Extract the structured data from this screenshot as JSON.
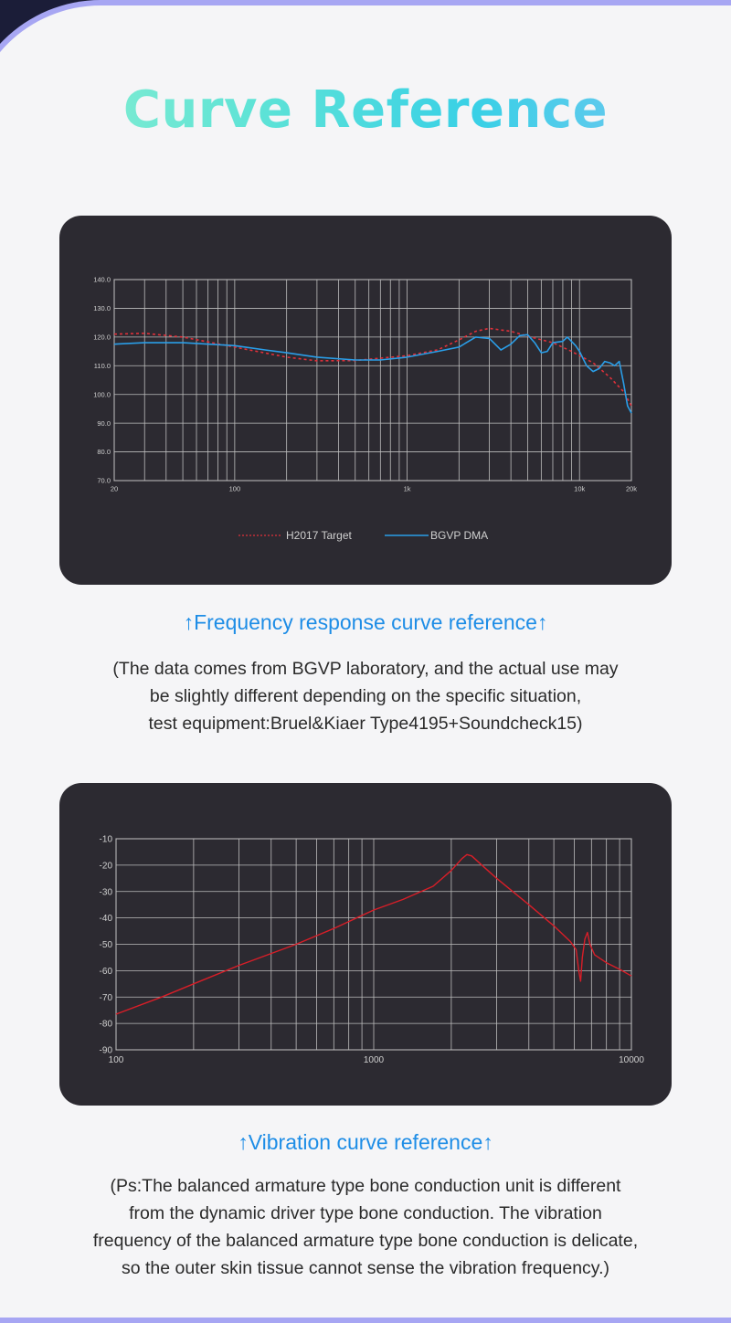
{
  "title": "Curve Reference",
  "frequency_section": {
    "caption": "↑Frequency response curve reference↑",
    "note_lines": [
      "(The data comes from BGVP laboratory, and the actual use may",
      "be slightly different depending on the specific situation,",
      "test equipment:Bruel&Kiaer Type4195+Soundcheck15)"
    ]
  },
  "vibration_section": {
    "caption": "↑Vibration curve reference↑",
    "note_lines": [
      "(Ps:The balanced armature type bone conduction unit is different",
      "from the dynamic driver type bone conduction. The vibration",
      "frequency of the balanced armature type bone conduction is delicate,",
      "so the outer skin tissue cannot sense the vibration frequency.)"
    ]
  },
  "colors": {
    "panel_bg": "#2c2a31",
    "target_line": "#e0303a",
    "measured_line": "#2a9ee8",
    "vibration_line": "#d81e28",
    "caption": "#1e8de6"
  },
  "chart_data": [
    {
      "type": "line",
      "x_scale": "log",
      "xlim": [
        20,
        20000
      ],
      "ylim": [
        70,
        140
      ],
      "x_ticks": [
        20,
        100,
        1000,
        10000,
        20000
      ],
      "x_tick_labels": [
        "20",
        "100",
        "1k",
        "10k",
        "20k"
      ],
      "y_ticks": [
        70,
        80,
        90,
        100,
        110,
        120,
        130,
        140
      ],
      "y_tick_labels": [
        "70.0",
        "80.0",
        "90.0",
        "100.0",
        "110.0",
        "120.0",
        "130.0",
        "140.0"
      ],
      "grid": true,
      "legend_position": "bottom-center",
      "series": [
        {
          "name": "H2017 Target",
          "style": "dashed",
          "color": "#e0303a",
          "points": [
            [
              20,
              121
            ],
            [
              30,
              121.3
            ],
            [
              50,
              120
            ],
            [
              100,
              116.5
            ],
            [
              200,
              113
            ],
            [
              300,
              111.7
            ],
            [
              500,
              111.8
            ],
            [
              1000,
              113.5
            ],
            [
              1500,
              115.5
            ],
            [
              2000,
              119
            ],
            [
              2500,
              122
            ],
            [
              3000,
              123
            ],
            [
              4000,
              122
            ],
            [
              5000,
              120.3
            ],
            [
              7000,
              118
            ],
            [
              9000,
              115
            ],
            [
              12000,
              111
            ],
            [
              15000,
              106
            ],
            [
              18000,
              101
            ],
            [
              20000,
              96
            ]
          ]
        },
        {
          "name": "BGVP DMA",
          "style": "solid",
          "color": "#2a9ee8",
          "points": [
            [
              20,
              117.5
            ],
            [
              30,
              118
            ],
            [
              50,
              118
            ],
            [
              100,
              117
            ],
            [
              150,
              115.5
            ],
            [
              200,
              114.5
            ],
            [
              300,
              113
            ],
            [
              500,
              112
            ],
            [
              700,
              112
            ],
            [
              1000,
              113
            ],
            [
              1500,
              115
            ],
            [
              2000,
              116.5
            ],
            [
              2500,
              120
            ],
            [
              3000,
              119.5
            ],
            [
              3500,
              115.5
            ],
            [
              4000,
              117.5
            ],
            [
              4500,
              120.5
            ],
            [
              5000,
              120.8
            ],
            [
              5500,
              118
            ],
            [
              6000,
              114.5
            ],
            [
              6500,
              115
            ],
            [
              7000,
              118
            ],
            [
              8000,
              118.5
            ],
            [
              8500,
              120
            ],
            [
              9500,
              117
            ],
            [
              10000,
              115
            ],
            [
              11000,
              110
            ],
            [
              12000,
              108
            ],
            [
              13000,
              109
            ],
            [
              14000,
              111.5
            ],
            [
              15000,
              111
            ],
            [
              16000,
              110
            ],
            [
              17000,
              111.5
            ],
            [
              18000,
              104
            ],
            [
              19000,
              96
            ],
            [
              20000,
              93.5
            ]
          ]
        }
      ]
    },
    {
      "type": "line",
      "x_scale": "log",
      "xlim": [
        100,
        10000
      ],
      "ylim": [
        -90,
        -10
      ],
      "x_ticks": [
        100,
        1000,
        10000
      ],
      "x_tick_labels": [
        "100",
        "1000",
        "10000"
      ],
      "y_ticks": [
        -90,
        -80,
        -70,
        -60,
        -50,
        -40,
        -30,
        -20,
        -10
      ],
      "y_tick_labels": [
        "-90",
        "-80",
        "-70",
        "-60",
        "-50",
        "-40",
        "-30",
        "-20",
        "-10"
      ],
      "grid": true,
      "series": [
        {
          "style": "solid",
          "color": "#d81e28",
          "points": [
            [
              100,
              -76.5
            ],
            [
              150,
              -70
            ],
            [
              200,
              -65
            ],
            [
              300,
              -58
            ],
            [
              500,
              -50
            ],
            [
              700,
              -44
            ],
            [
              1000,
              -37
            ],
            [
              1300,
              -33
            ],
            [
              1700,
              -28
            ],
            [
              2000,
              -22
            ],
            [
              2200,
              -17.5
            ],
            [
              2300,
              -16
            ],
            [
              2400,
              -16.5
            ],
            [
              2700,
              -21
            ],
            [
              3000,
              -25
            ],
            [
              4000,
              -35
            ],
            [
              5000,
              -43
            ],
            [
              5800,
              -49
            ],
            [
              6100,
              -52
            ],
            [
              6250,
              -60
            ],
            [
              6350,
              -64
            ],
            [
              6450,
              -55
            ],
            [
              6600,
              -48
            ],
            [
              6750,
              -45.5
            ],
            [
              6900,
              -50
            ],
            [
              7200,
              -54
            ],
            [
              8000,
              -57
            ],
            [
              9000,
              -59.5
            ],
            [
              10000,
              -62
            ]
          ]
        }
      ]
    }
  ]
}
